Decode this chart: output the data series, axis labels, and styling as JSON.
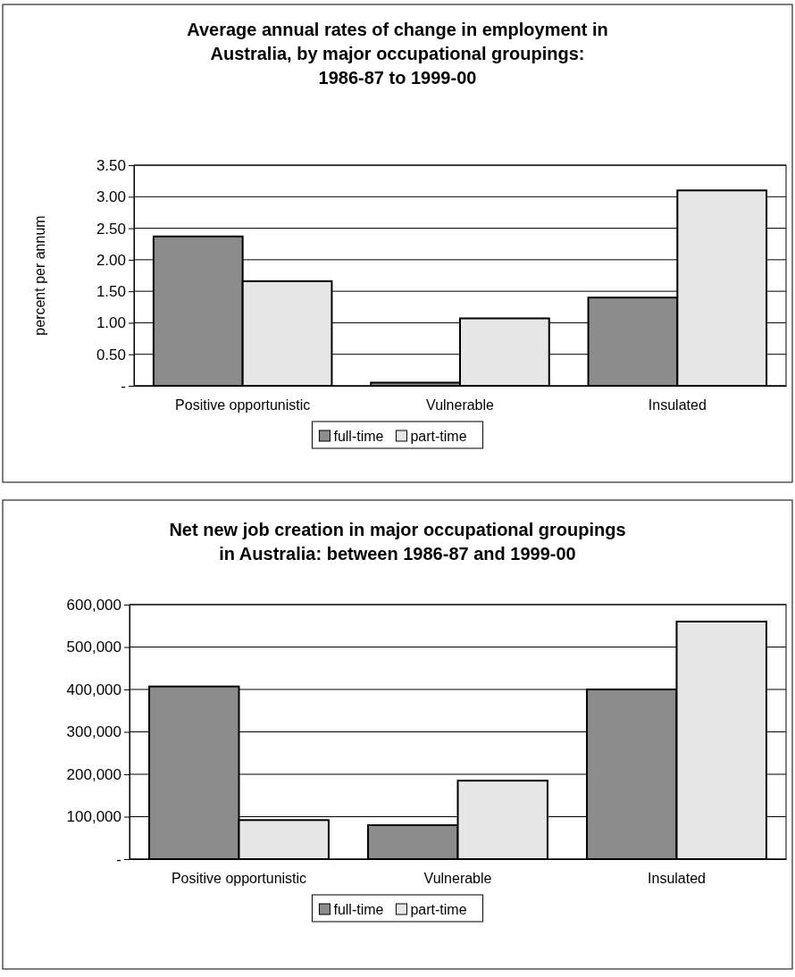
{
  "chart_data": [
    {
      "type": "bar",
      "title": "Average annual rates of change in employment in\nAustralia, by major occupational groupings:\n1986-87 to 1999-00",
      "ylabel": "percent per annum",
      "categories": [
        "Positive opportunistic",
        "Vulnerable",
        "Insulated"
      ],
      "series": [
        {
          "name": "full-time",
          "color": "#8c8c8c",
          "values": [
            2.37,
            0.05,
            1.4
          ]
        },
        {
          "name": "part-time",
          "color": "#e6e6e6",
          "values": [
            1.66,
            1.07,
            3.1
          ]
        }
      ],
      "ylim": [
        0,
        3.5
      ],
      "yticks": [
        {
          "value": 0,
          "label": "-"
        },
        {
          "value": 0.5,
          "label": "0.50"
        },
        {
          "value": 1,
          "label": "1.00"
        },
        {
          "value": 1.5,
          "label": "1.50"
        },
        {
          "value": 2,
          "label": "2.00"
        },
        {
          "value": 2.5,
          "label": "2.50"
        },
        {
          "value": 3,
          "label": "3.00"
        },
        {
          "value": 3.5,
          "label": "3.50"
        }
      ],
      "grid": "y",
      "legend": "bottom"
    },
    {
      "type": "bar",
      "title": "Net new job creation in major occupational groupings\nin Australia: between 1986-87 and 1999-00",
      "categories": [
        "Positive opportunistic",
        "Vulnerable",
        "Insulated"
      ],
      "series": [
        {
          "name": "full-time",
          "color": "#8c8c8c",
          "values": [
            407000,
            80000,
            400000
          ]
        },
        {
          "name": "part-time",
          "color": "#e6e6e6",
          "values": [
            92000,
            185000,
            560000
          ]
        }
      ],
      "ylim": [
        0,
        600000
      ],
      "yticks": [
        {
          "value": 0,
          "label": "-"
        },
        {
          "value": 100000,
          "label": "100,000"
        },
        {
          "value": 200000,
          "label": "200,000"
        },
        {
          "value": 300000,
          "label": "300,000"
        },
        {
          "value": 400000,
          "label": "400,000"
        },
        {
          "value": 500000,
          "label": "500,000"
        },
        {
          "value": 600000,
          "label": "600,000"
        }
      ],
      "grid": "y",
      "legend": "bottom"
    }
  ]
}
